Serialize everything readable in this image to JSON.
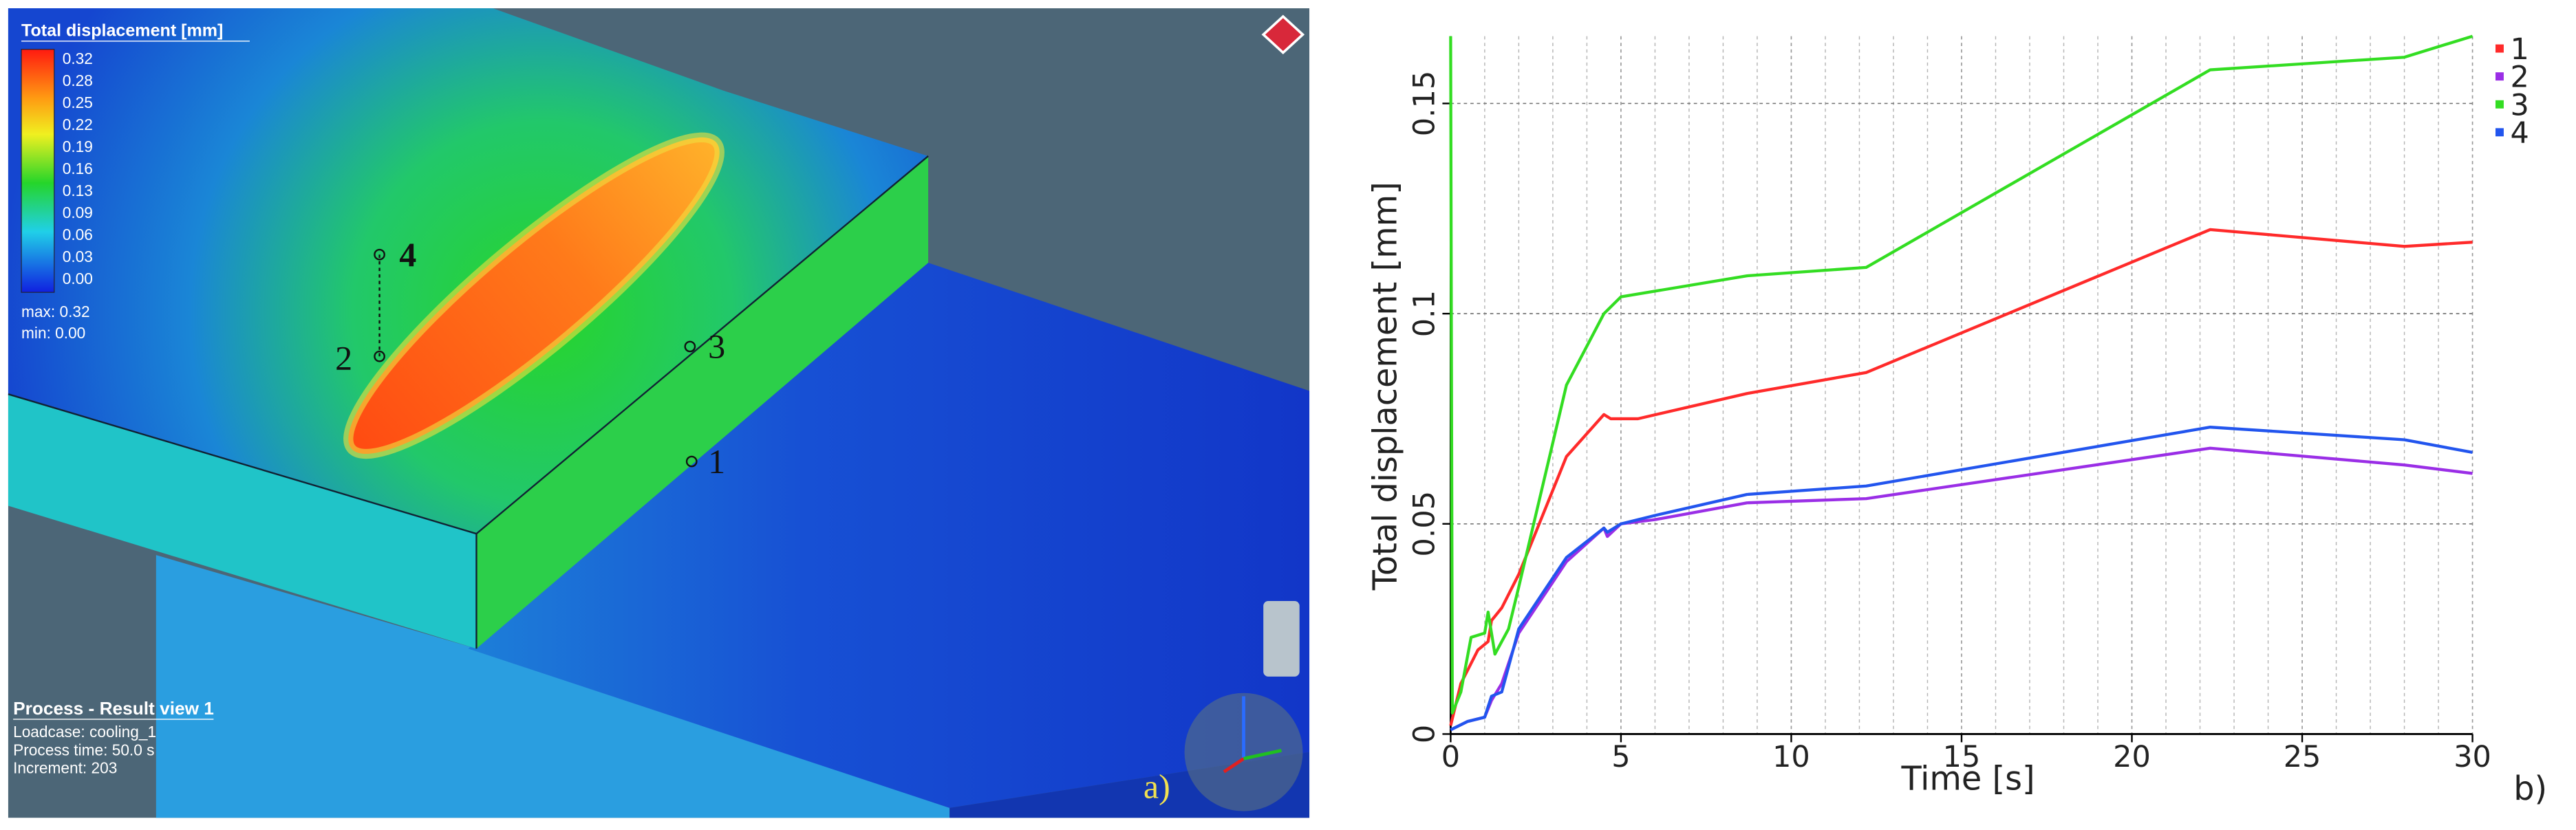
{
  "simulation": {
    "legend_title": "Total displacement [mm]",
    "legend_labels": [
      "0.32",
      "0.28",
      "0.25",
      "0.22",
      "0.19",
      "0.16",
      "0.13",
      "0.09",
      "0.06",
      "0.03",
      "0.00"
    ],
    "max_label": "max: 0.32",
    "min_label": "min: 0.00",
    "points": [
      {
        "label": "4"
      },
      {
        "label": "2"
      },
      {
        "label": "3"
      },
      {
        "label": "1"
      }
    ],
    "view_title": "Process - Result view 1",
    "info": [
      "Loadcase: cooling_1",
      "Process time: 50.0 s",
      "Increment: 203"
    ],
    "panel_label": "a)"
  },
  "chart_data": {
    "type": "line",
    "xlabel": "Time [s]",
    "ylabel": "Total displacement [mm]",
    "panel_label": "b)",
    "xlim": [
      0,
      30
    ],
    "ylim": [
      0,
      0.166
    ],
    "xticks": [
      0,
      5,
      10,
      15,
      20,
      25,
      30
    ],
    "xminorticks": [
      1,
      2,
      3,
      4,
      6,
      7,
      8,
      9,
      11,
      12,
      13,
      14,
      16,
      17,
      18,
      19,
      21,
      22,
      23,
      24,
      26,
      27,
      28,
      29
    ],
    "yticks": [
      0,
      0.05,
      0.1,
      0.15
    ],
    "grid": true,
    "legend": "top-right",
    "series": [
      {
        "name": "1",
        "color": "#ff2a2a",
        "x": [
          0,
          0.3,
          0.8,
          1.1,
          1.2,
          1.5,
          2,
          3.4,
          4.5,
          4.7,
          5.5,
          8.7,
          12.2,
          22.3,
          28,
          30
        ],
        "values": [
          0.002,
          0.012,
          0.02,
          0.022,
          0.027,
          0.03,
          0.038,
          0.066,
          0.076,
          0.075,
          0.075,
          0.081,
          0.086,
          0.12,
          0.116,
          0.117
        ]
      },
      {
        "name": "2",
        "color": "#9a2ee6",
        "x": [
          0,
          0.5,
          1,
          1.2,
          1.5,
          2,
          3.4,
          4.5,
          4.6,
          5,
          6,
          8.7,
          12.2,
          22.3,
          28,
          30
        ],
        "values": [
          0.001,
          0.003,
          0.004,
          0.008,
          0.012,
          0.024,
          0.041,
          0.049,
          0.047,
          0.05,
          0.051,
          0.055,
          0.056,
          0.068,
          0.064,
          0.062
        ]
      },
      {
        "name": "3",
        "color": "#33dd22",
        "x": [
          0,
          0.05,
          0.3,
          0.6,
          1,
          1.1,
          1.3,
          1.7,
          2,
          3.4,
          4.5,
          5,
          8.7,
          12.2,
          22.3,
          28,
          30
        ],
        "values": [
          0.166,
          0.005,
          0.01,
          0.023,
          0.024,
          0.029,
          0.019,
          0.025,
          0.035,
          0.083,
          0.1,
          0.104,
          0.109,
          0.111,
          0.158,
          0.161,
          0.166
        ]
      },
      {
        "name": "4",
        "color": "#2255ee",
        "x": [
          0,
          0.5,
          1,
          1.2,
          1.5,
          2,
          3.4,
          4.5,
          4.6,
          5,
          6,
          8.7,
          12.2,
          22.3,
          28,
          30
        ],
        "values": [
          0.001,
          0.003,
          0.004,
          0.009,
          0.01,
          0.025,
          0.042,
          0.049,
          0.048,
          0.05,
          0.052,
          0.057,
          0.059,
          0.073,
          0.07,
          0.067
        ]
      }
    ]
  }
}
